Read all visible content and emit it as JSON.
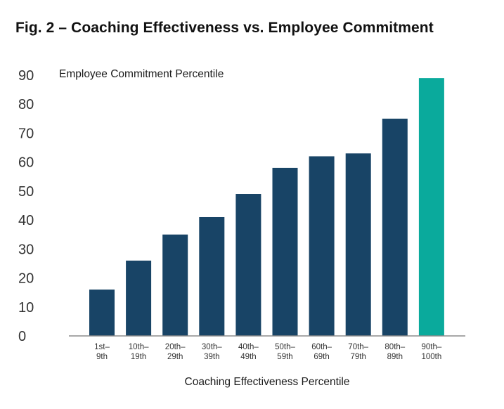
{
  "figure": {
    "title": "Fig. 2 – Coaching Effectiveness vs. Employee Commitment"
  },
  "colors": {
    "bar": "#184466",
    "highlight": "#0aaa9c",
    "axis": "#8c8c8c",
    "text": "#333333"
  },
  "chart_data": {
    "type": "bar",
    "title": "Fig. 2 – Coaching Effectiveness vs. Employee Commitment",
    "xlabel": "Coaching Effectiveness Percentile",
    "ylabel": "Employee Commitment Percentile",
    "ylim": [
      0,
      90
    ],
    "yticks": [
      0,
      10,
      20,
      30,
      40,
      50,
      60,
      70,
      80,
      90
    ],
    "grid": false,
    "categories": [
      [
        "1st–",
        "9th"
      ],
      [
        "10th–",
        "19th"
      ],
      [
        "20th–",
        "29th"
      ],
      [
        "30th–",
        "39th"
      ],
      [
        "40th–",
        "49th"
      ],
      [
        "50th–",
        "59th"
      ],
      [
        "60th–",
        "69th"
      ],
      [
        "70th–",
        "79th"
      ],
      [
        "80th–",
        "89th"
      ],
      [
        "90th–",
        "100th"
      ]
    ],
    "values": [
      16,
      26,
      35,
      41,
      49,
      58,
      62,
      63,
      75,
      89
    ],
    "highlight_index": 9
  }
}
